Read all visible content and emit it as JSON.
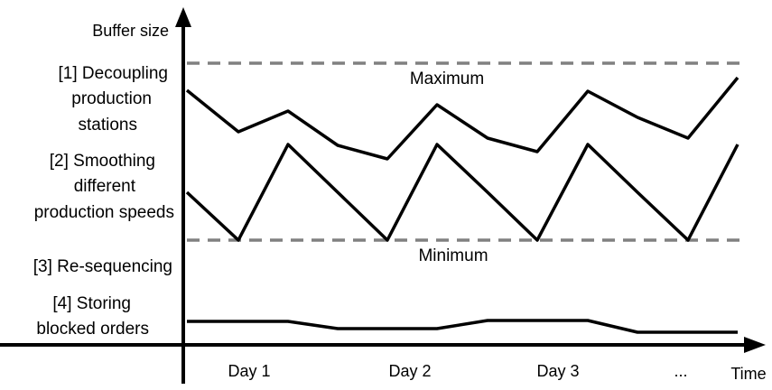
{
  "y_axis_label": "Buffer size",
  "x_axis_label": "Time",
  "x_ticks": [
    "Day 1",
    "Day 2",
    "Day 3",
    "..."
  ],
  "max_label": "Maximum",
  "min_label": "Minimum",
  "categories": [
    {
      "lines": [
        "[1] Decoupling",
        "production",
        "stations"
      ]
    },
    {
      "lines": [
        "[2] Smoothing",
        "different",
        "production speeds"
      ]
    },
    {
      "lines": [
        "[3] Re-sequencing"
      ]
    },
    {
      "lines": [
        "[4] Storing",
        "blocked orders"
      ]
    }
  ],
  "colors": {
    "line": "#000000",
    "limit_line": "#808080"
  }
}
